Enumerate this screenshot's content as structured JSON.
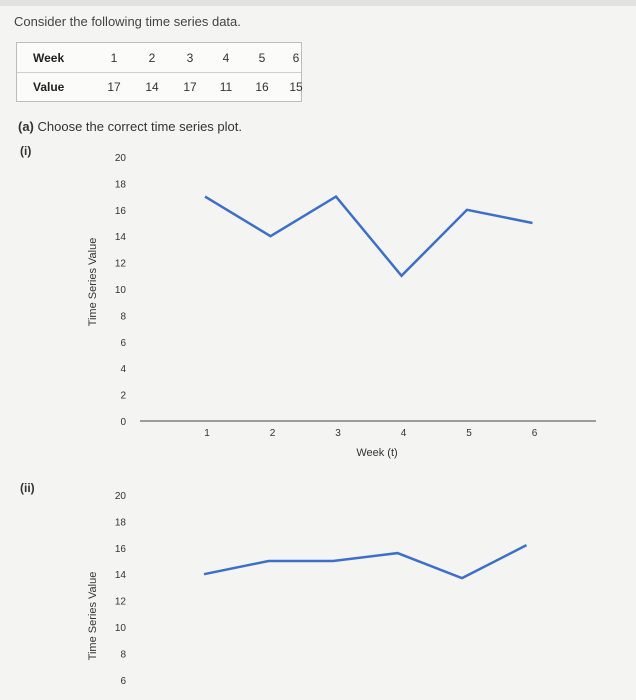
{
  "intro": "Consider the following time series data.",
  "table": {
    "week_label": "Week",
    "value_label": "Value",
    "weeks": [
      "1",
      "2",
      "3",
      "4",
      "5",
      "6"
    ],
    "values": [
      "17",
      "14",
      "17",
      "11",
      "16",
      "15"
    ]
  },
  "question": {
    "part": "(a)",
    "text": "Choose the correct time series plot."
  },
  "chart_data": [
    {
      "type": "line",
      "label": "(i)",
      "ylabel": "Time Series Value",
      "xlabel": "Week (t)",
      "yticks": [
        "20",
        "18",
        "16",
        "14",
        "12",
        "10",
        "8",
        "6",
        "4",
        "2",
        "0"
      ],
      "xticks": [
        "1",
        "2",
        "3",
        "4",
        "5",
        "6"
      ],
      "x": [
        1,
        2,
        3,
        4,
        5,
        6
      ],
      "y": [
        17,
        14,
        17,
        11,
        16,
        15
      ],
      "ylim": [
        0,
        20
      ],
      "xlim": [
        0,
        6
      ],
      "line_color": "#3d6fc8"
    },
    {
      "type": "line",
      "label": "(ii)",
      "ylabel": "Time Series Value",
      "yticks": [
        "20",
        "18",
        "16",
        "14",
        "12",
        "10",
        "8",
        "6"
      ],
      "x": [
        1,
        2,
        3,
        4,
        5,
        6
      ],
      "y": [
        14,
        15,
        15,
        15.6,
        13.7,
        16.2
      ],
      "ylim": [
        0,
        20
      ],
      "line_color": "#3d6fc8"
    }
  ]
}
